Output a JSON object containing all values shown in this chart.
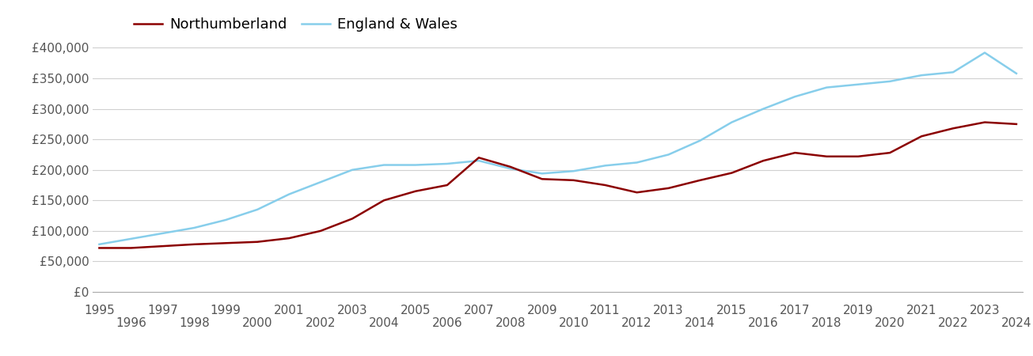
{
  "title": "",
  "legend_labels": [
    "Northumberland",
    "England & Wales"
  ],
  "northumberland_color": "#8B0000",
  "england_wales_color": "#87CEEB",
  "background_color": "#ffffff",
  "grid_color": "#d0d0d0",
  "years": [
    1995,
    1996,
    1997,
    1998,
    1999,
    2000,
    2001,
    2002,
    2003,
    2004,
    2005,
    2006,
    2007,
    2008,
    2009,
    2010,
    2011,
    2012,
    2013,
    2014,
    2015,
    2016,
    2017,
    2018,
    2019,
    2020,
    2021,
    2022,
    2023,
    2024
  ],
  "northumberland": [
    72000,
    72000,
    75000,
    78000,
    80000,
    82000,
    88000,
    100000,
    120000,
    150000,
    165000,
    175000,
    220000,
    205000,
    185000,
    183000,
    175000,
    163000,
    170000,
    183000,
    195000,
    215000,
    228000,
    222000,
    222000,
    228000,
    255000,
    268000,
    278000,
    275000
  ],
  "england_wales": [
    78000,
    87000,
    96000,
    105000,
    118000,
    135000,
    160000,
    180000,
    200000,
    208000,
    208000,
    210000,
    215000,
    202000,
    194000,
    198000,
    207000,
    212000,
    225000,
    248000,
    278000,
    300000,
    320000,
    335000,
    340000,
    345000,
    355000,
    360000,
    392000,
    358000
  ],
  "ylim": [
    0,
    420000
  ],
  "yticks": [
    0,
    50000,
    100000,
    150000,
    200000,
    250000,
    300000,
    350000,
    400000
  ],
  "ytick_labels": [
    "£0",
    "£50,000",
    "£100,000",
    "£150,000",
    "£200,000",
    "£250,000",
    "£300,000",
    "£350,000",
    "£400,000"
  ],
  "line_width": 1.8,
  "legend_fontsize": 13,
  "tick_fontsize": 11,
  "xlim_left": 1995,
  "xlim_right": 2024
}
